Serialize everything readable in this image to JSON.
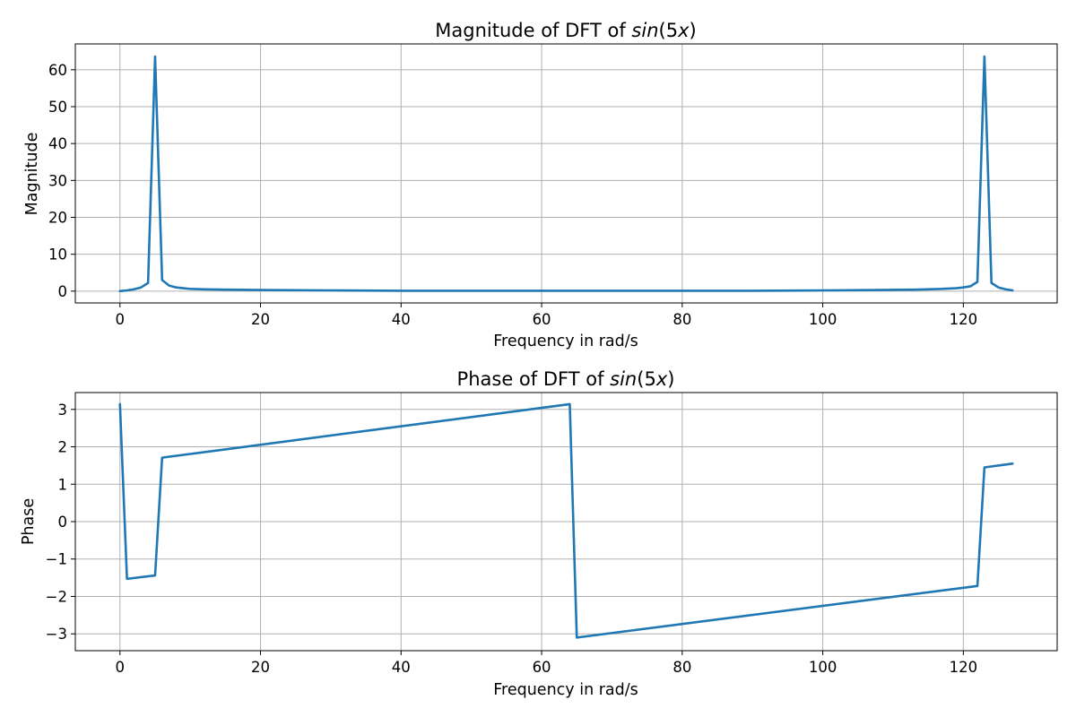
{
  "colors": {
    "series": "#1f77b4",
    "grid": "#b0b0b0",
    "axes": "#000000"
  },
  "chart_data": [
    {
      "type": "line",
      "title_prefix": "Magnitude of DFT of ",
      "title_math": "sin",
      "title_suffix": "(5",
      "title_var": "x",
      "title_end": ")",
      "xlabel": "Frequency in rad/s",
      "ylabel": "Magnitude",
      "xlim": [
        -6.35,
        133.35
      ],
      "ylim": [
        -3.2,
        67
      ],
      "xticks": [
        0,
        20,
        40,
        60,
        80,
        100,
        120
      ],
      "xtick_labels": [
        "0",
        "20",
        "40",
        "60",
        "80",
        "100",
        "120"
      ],
      "yticks": [
        0,
        10,
        20,
        30,
        40,
        50,
        60
      ],
      "ytick_labels": [
        "0",
        "10",
        "20",
        "30",
        "40",
        "50",
        "60"
      ],
      "grid": true,
      "x": [
        0,
        1,
        2,
        3,
        4,
        5,
        6,
        7,
        8,
        9,
        10,
        12,
        15,
        20,
        30,
        40,
        50,
        60,
        64,
        70,
        80,
        90,
        100,
        108,
        113,
        115,
        117,
        118,
        119,
        120,
        121,
        122,
        123,
        124,
        125,
        126,
        127
      ],
      "y": [
        0.0,
        0.2,
        0.5,
        1.0,
        2.2,
        63.6,
        3.0,
        1.5,
        1.0,
        0.8,
        0.6,
        0.5,
        0.4,
        0.3,
        0.2,
        0.1,
        0.1,
        0.1,
        0.1,
        0.1,
        0.1,
        0.1,
        0.2,
        0.3,
        0.4,
        0.5,
        0.6,
        0.7,
        0.8,
        1.0,
        1.3,
        2.5,
        63.6,
        2.2,
        1.0,
        0.5,
        0.2
      ]
    },
    {
      "type": "line",
      "title_prefix": "Phase of DFT of ",
      "title_math": "sin",
      "title_suffix": "(5",
      "title_var": "x",
      "title_end": ")",
      "xlabel": "Frequency in rad/s",
      "ylabel": "Phase",
      "xlim": [
        -6.35,
        133.35
      ],
      "ylim": [
        -3.45,
        3.45
      ],
      "xticks": [
        0,
        20,
        40,
        60,
        80,
        100,
        120
      ],
      "xtick_labels": [
        "0",
        "20",
        "40",
        "60",
        "80",
        "100",
        "120"
      ],
      "yticks": [
        -3,
        -2,
        -1,
        0,
        1,
        2,
        3
      ],
      "ytick_labels": [
        "−3",
        "−2",
        "−1",
        "0",
        "1",
        "2",
        "3"
      ],
      "grid": true,
      "x": [
        0,
        1,
        5,
        6,
        64,
        65,
        122,
        123,
        127
      ],
      "y": [
        3.14,
        -1.53,
        -1.44,
        1.71,
        3.14,
        -3.1,
        -1.72,
        1.45,
        1.55
      ]
    }
  ]
}
